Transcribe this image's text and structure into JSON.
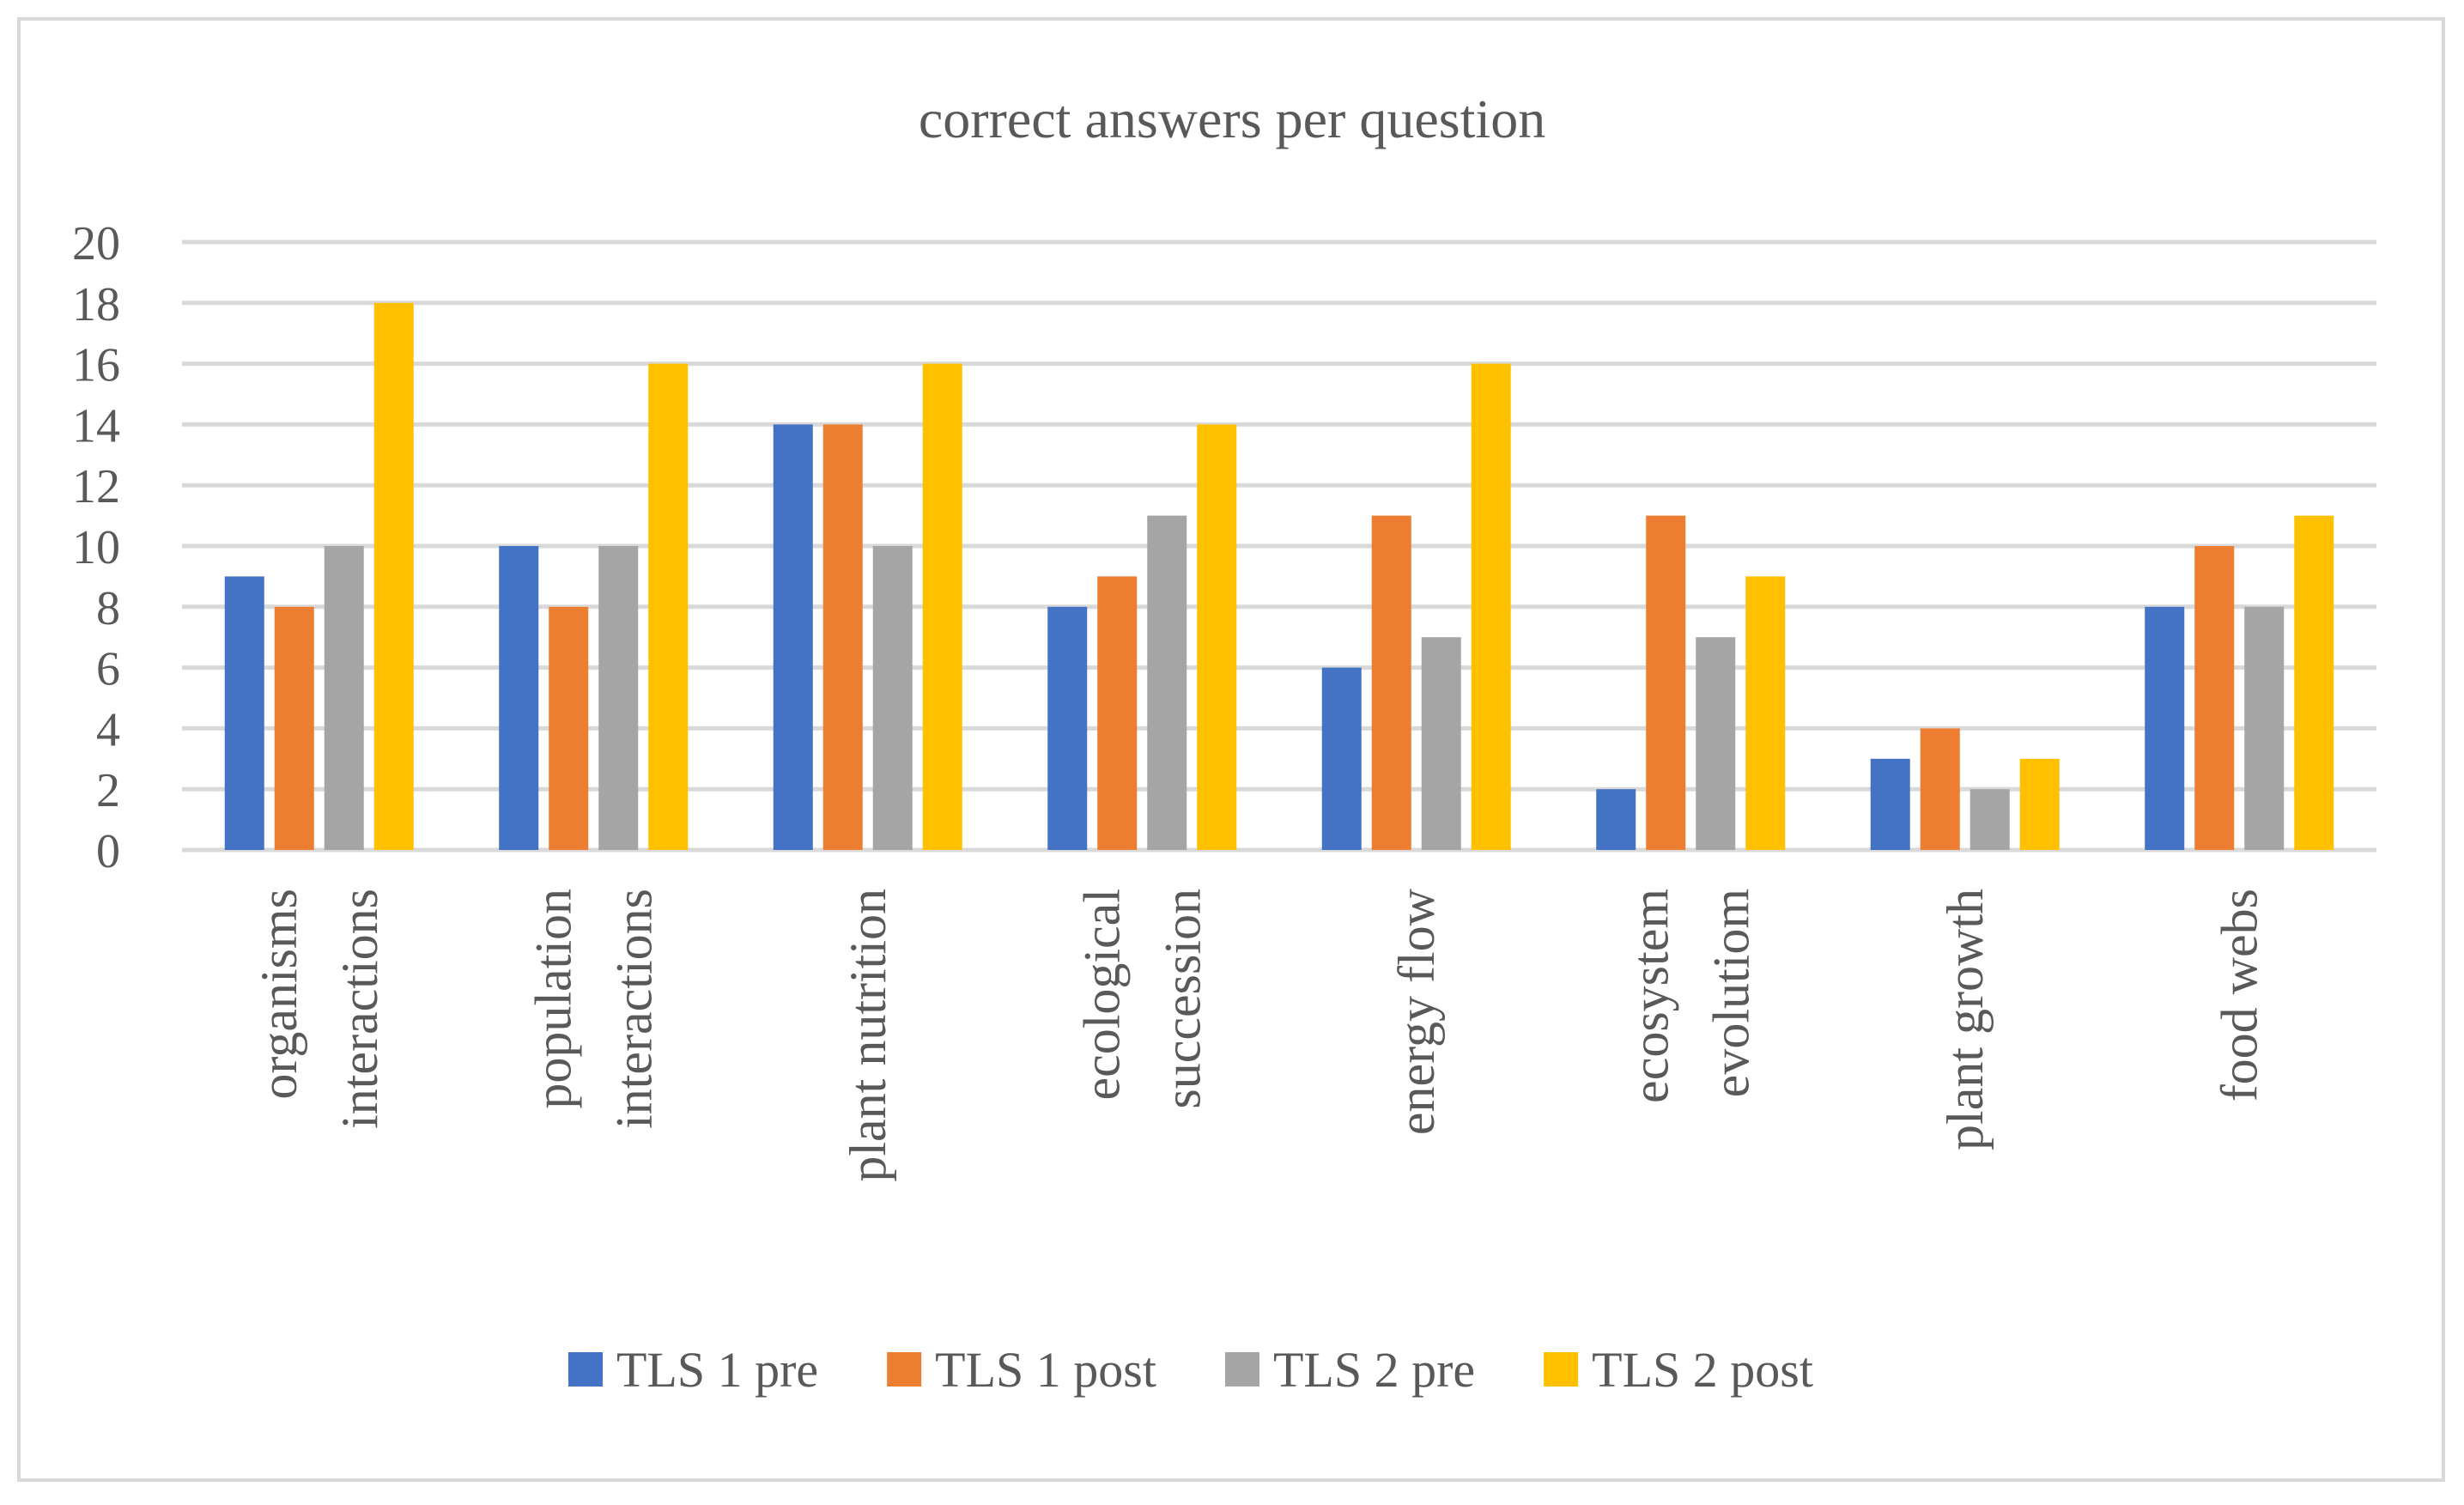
{
  "chart_data": {
    "type": "bar",
    "title": "correct answers per question",
    "xlabel": "",
    "ylabel": "",
    "ylim": [
      0,
      20
    ],
    "yticks": [
      0,
      2,
      4,
      6,
      8,
      10,
      12,
      14,
      16,
      18,
      20
    ],
    "grid": true,
    "legend_position": "bottom",
    "categories": [
      [
        "organisms",
        "interactions"
      ],
      [
        "population",
        "interactions"
      ],
      [
        "plant nutrition"
      ],
      [
        "ecological",
        "succession"
      ],
      [
        "energy flow"
      ],
      [
        "ecosystem",
        "evolutiom"
      ],
      [
        "plant growth"
      ],
      [
        "food webs"
      ]
    ],
    "series": [
      {
        "name": "TLS 1 pre",
        "color": "#4472c4",
        "values": [
          9,
          10,
          14,
          8,
          6,
          2,
          3,
          8
        ]
      },
      {
        "name": "TLS 1 post",
        "color": "#ed7d31",
        "values": [
          8,
          8,
          14,
          9,
          11,
          11,
          4,
          10
        ]
      },
      {
        "name": "TLS 2 pre",
        "color": "#a5a5a5",
        "values": [
          10,
          10,
          10,
          11,
          7,
          7,
          2,
          8
        ]
      },
      {
        "name": "TLS 2 post",
        "color": "#ffc000",
        "values": [
          18,
          16,
          16,
          14,
          16,
          9,
          3,
          11
        ]
      }
    ],
    "colors": {
      "grid": "#d9d9d9",
      "text": "#595959",
      "frame": "#d9d9d9"
    }
  }
}
